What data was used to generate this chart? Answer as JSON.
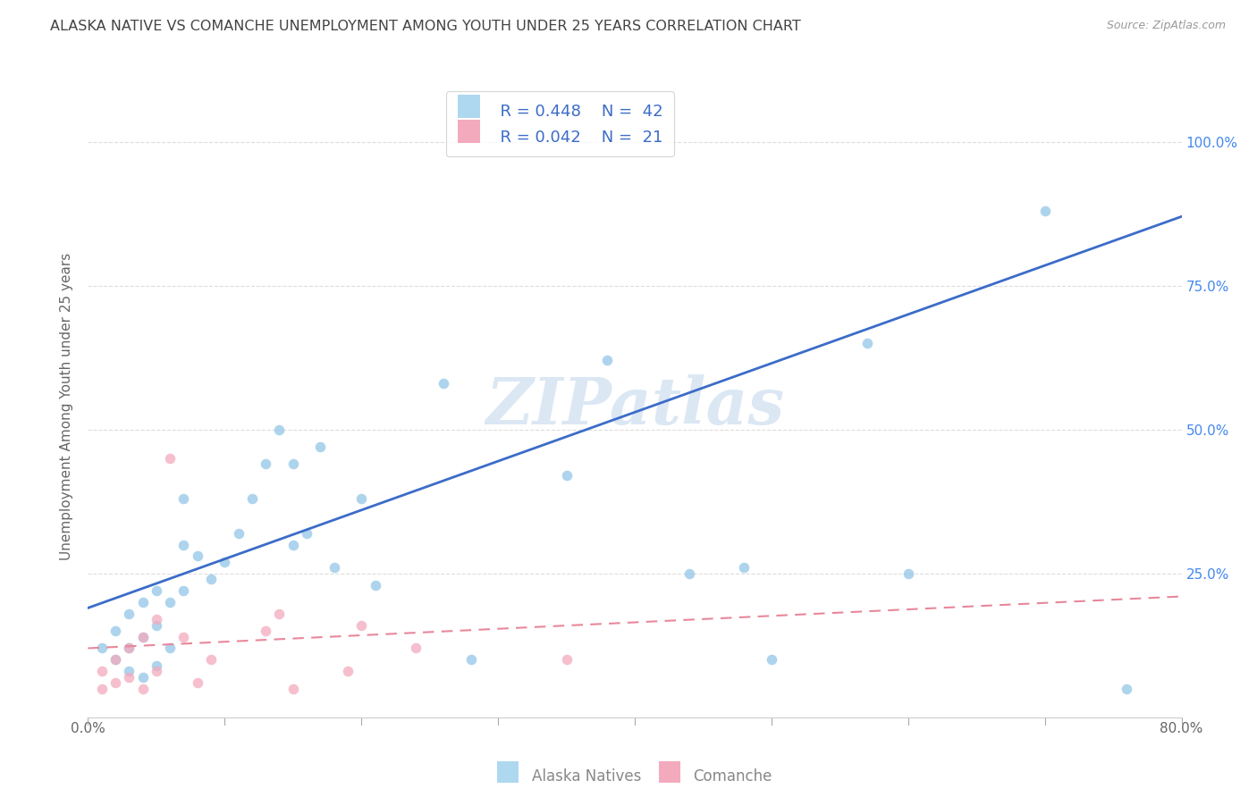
{
  "title": "ALASKA NATIVE VS COMANCHE UNEMPLOYMENT AMONG YOUTH UNDER 25 YEARS CORRELATION CHART",
  "source": "Source: ZipAtlas.com",
  "ylabel": "Unemployment Among Youth under 25 years",
  "xlim": [
    0.0,
    0.8
  ],
  "ylim": [
    0.0,
    1.08
  ],
  "xticks": [
    0.0,
    0.1,
    0.2,
    0.3,
    0.4,
    0.5,
    0.6,
    0.7,
    0.8
  ],
  "xticklabels": [
    "0.0%",
    "",
    "",
    "",
    "",
    "",
    "",
    "",
    "80.0%"
  ],
  "yticks": [
    0.0,
    0.25,
    0.5,
    0.75,
    1.0
  ],
  "yticklabels_right": [
    "",
    "25.0%",
    "50.0%",
    "75.0%",
    "100.0%"
  ],
  "watermark": "ZIPatlas",
  "blue_R": "0.448",
  "blue_N": "42",
  "pink_R": "0.042",
  "pink_N": "21",
  "blue_scatter_x": [
    0.01,
    0.02,
    0.02,
    0.03,
    0.03,
    0.03,
    0.04,
    0.04,
    0.04,
    0.05,
    0.05,
    0.05,
    0.06,
    0.06,
    0.07,
    0.07,
    0.07,
    0.08,
    0.09,
    0.1,
    0.11,
    0.12,
    0.13,
    0.14,
    0.15,
    0.15,
    0.16,
    0.17,
    0.18,
    0.2,
    0.21,
    0.26,
    0.28,
    0.35,
    0.38,
    0.44,
    0.48,
    0.5,
    0.57,
    0.6,
    0.7,
    0.76
  ],
  "blue_scatter_y": [
    0.12,
    0.1,
    0.15,
    0.08,
    0.12,
    0.18,
    0.07,
    0.14,
    0.2,
    0.09,
    0.16,
    0.22,
    0.12,
    0.2,
    0.22,
    0.3,
    0.38,
    0.28,
    0.24,
    0.27,
    0.32,
    0.38,
    0.44,
    0.5,
    0.3,
    0.44,
    0.32,
    0.47,
    0.26,
    0.38,
    0.23,
    0.58,
    0.1,
    0.42,
    0.62,
    0.25,
    0.26,
    0.1,
    0.65,
    0.25,
    0.88,
    0.05
  ],
  "pink_scatter_x": [
    0.01,
    0.01,
    0.02,
    0.02,
    0.03,
    0.03,
    0.04,
    0.04,
    0.05,
    0.05,
    0.06,
    0.07,
    0.08,
    0.09,
    0.13,
    0.14,
    0.15,
    0.19,
    0.2,
    0.24,
    0.35
  ],
  "pink_scatter_y": [
    0.05,
    0.08,
    0.06,
    0.1,
    0.07,
    0.12,
    0.05,
    0.14,
    0.08,
    0.17,
    0.45,
    0.14,
    0.06,
    0.1,
    0.15,
    0.18,
    0.05,
    0.08,
    0.16,
    0.12,
    0.1
  ],
  "blue_line_x0": 0.0,
  "blue_line_x1": 0.8,
  "blue_line_y0": 0.19,
  "blue_line_y1": 0.87,
  "pink_line_x0": 0.0,
  "pink_line_x1": 0.8,
  "pink_line_y0": 0.12,
  "pink_line_y1": 0.21,
  "blue_dot_color": "#93C6E8",
  "pink_dot_color": "#F4AABD",
  "blue_line_color": "#3B6CC8",
  "pink_line_color": "#E8879A",
  "legend_box_blue": "#ADD8F0",
  "legend_box_pink": "#F4AABD",
  "legend_text_color": "#3B6CC8",
  "bg_color": "#FFFFFF",
  "grid_color": "#DDDDDD",
  "title_color": "#444444",
  "ylabel_color": "#666666",
  "right_tick_color": "#4488EE",
  "watermark_color": "#C5D8EE",
  "scatter_alpha": 0.75,
  "scatter_size": 70,
  "bottom_legend_color": "#888888"
}
